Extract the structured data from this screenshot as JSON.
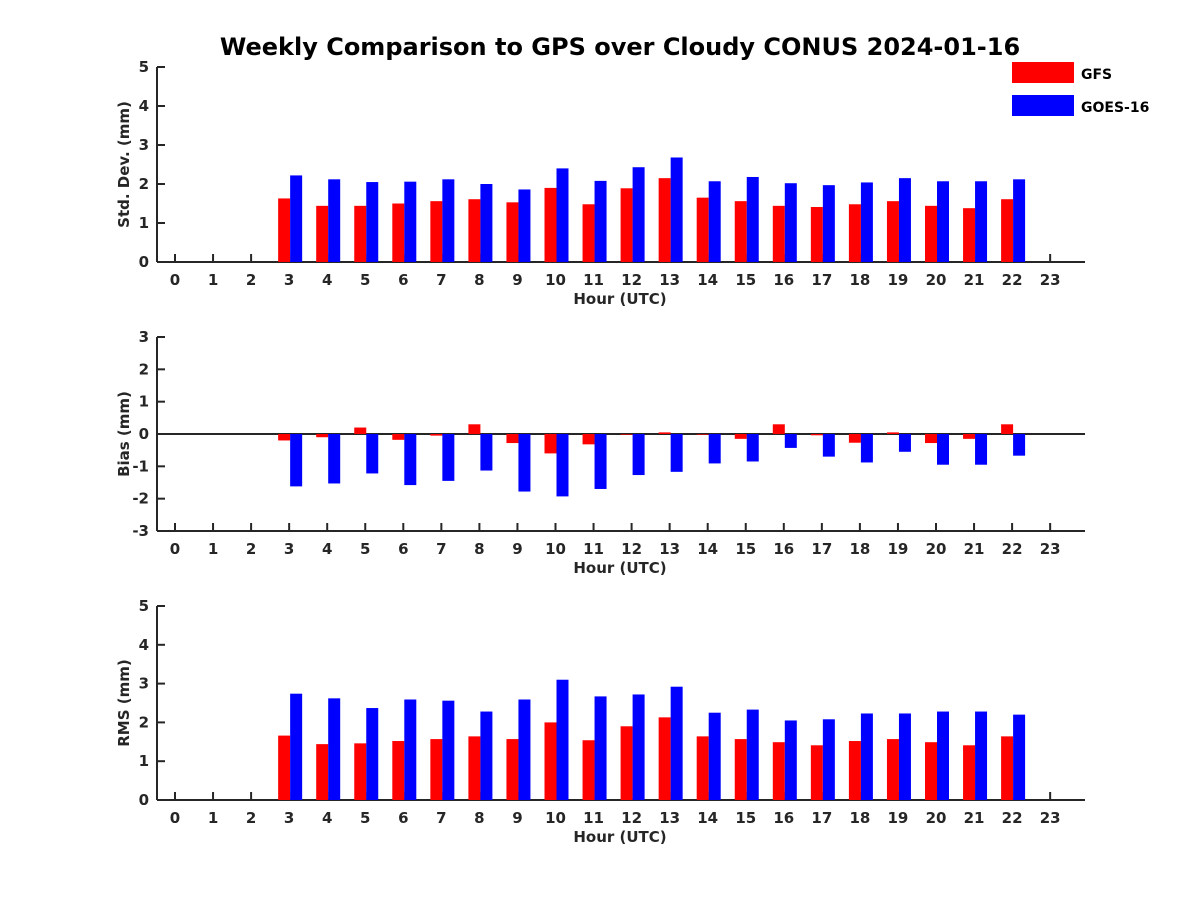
{
  "chart_data": {
    "title": "Weekly Comparison to GPS over Cloudy CONUS 2024-01-16",
    "legend": {
      "placement": "top-right",
      "entries": [
        {
          "name": "GFS",
          "color": "#ff0000"
        },
        {
          "name": "GOES-16",
          "color": "#0000ff"
        }
      ]
    },
    "panels": [
      {
        "type": "bar",
        "ylabel": "Std. Dev. (mm)",
        "xlabel": "Hour (UTC)",
        "ylim": [
          0,
          5
        ],
        "yticks": [
          "0",
          "1",
          "2",
          "3",
          "4",
          "5"
        ],
        "categories": [
          "0",
          "1",
          "2",
          "3",
          "4",
          "5",
          "6",
          "7",
          "8",
          "9",
          "10",
          "11",
          "12",
          "13",
          "14",
          "15",
          "16",
          "17",
          "18",
          "19",
          "20",
          "21",
          "22",
          "23"
        ],
        "series": [
          {
            "name": "GFS",
            "values": [
              null,
              null,
              null,
              1.63,
              1.44,
              1.44,
              1.5,
              1.56,
              1.61,
              1.53,
              1.9,
              1.48,
              1.89,
              2.15,
              1.65,
              1.56,
              1.44,
              1.41,
              1.48,
              1.56,
              1.44,
              1.38,
              1.61,
              null
            ]
          },
          {
            "name": "GOES-16",
            "values": [
              null,
              null,
              null,
              2.22,
              2.12,
              2.05,
              2.06,
              2.12,
              2.0,
              1.86,
              2.4,
              2.08,
              2.43,
              2.68,
              2.07,
              2.18,
              2.02,
              1.97,
              2.04,
              2.15,
              2.07,
              2.07,
              2.12,
              null
            ]
          }
        ]
      },
      {
        "type": "bar",
        "ylabel": "Bias (mm)",
        "xlabel": "Hour (UTC)",
        "ylim": [
          -3,
          3
        ],
        "yticks": [
          "-3",
          "-2",
          "-1",
          "0",
          "1",
          "2",
          "3"
        ],
        "zero_line": true,
        "categories": [
          "0",
          "1",
          "2",
          "3",
          "4",
          "5",
          "6",
          "7",
          "8",
          "9",
          "10",
          "11",
          "12",
          "13",
          "14",
          "15",
          "16",
          "17",
          "18",
          "19",
          "20",
          "21",
          "22",
          "23"
        ],
        "series": [
          {
            "name": "GFS",
            "values": [
              null,
              null,
              null,
              -0.2,
              -0.1,
              0.2,
              -0.18,
              -0.05,
              0.3,
              -0.28,
              -0.6,
              -0.32,
              -0.02,
              0.05,
              -0.02,
              -0.15,
              0.3,
              -0.04,
              -0.27,
              0.05,
              -0.28,
              -0.15,
              0.3,
              null
            ]
          },
          {
            "name": "GOES-16",
            "values": [
              null,
              null,
              null,
              -1.62,
              -1.53,
              -1.22,
              -1.58,
              -1.45,
              -1.13,
              -1.78,
              -1.93,
              -1.7,
              -1.27,
              -1.17,
              -0.91,
              -0.85,
              -0.43,
              -0.7,
              -0.88,
              -0.55,
              -0.95,
              -0.95,
              -0.67,
              null
            ]
          }
        ]
      },
      {
        "type": "bar",
        "ylabel": "RMS (mm)",
        "xlabel": "Hour (UTC)",
        "ylim": [
          0,
          5
        ],
        "yticks": [
          "0",
          "1",
          "2",
          "3",
          "4",
          "5"
        ],
        "categories": [
          "0",
          "1",
          "2",
          "3",
          "4",
          "5",
          "6",
          "7",
          "8",
          "9",
          "10",
          "11",
          "12",
          "13",
          "14",
          "15",
          "16",
          "17",
          "18",
          "19",
          "20",
          "21",
          "22",
          "23"
        ],
        "series": [
          {
            "name": "GFS",
            "values": [
              null,
              null,
              null,
              1.66,
              1.44,
              1.46,
              1.52,
              1.57,
              1.64,
              1.57,
              2.0,
              1.54,
              1.9,
              2.13,
              1.64,
              1.57,
              1.49,
              1.41,
              1.52,
              1.57,
              1.49,
              1.41,
              1.64,
              null
            ]
          },
          {
            "name": "GOES-16",
            "values": [
              null,
              null,
              null,
              2.74,
              2.62,
              2.37,
              2.59,
              2.56,
              2.28,
              2.59,
              3.1,
              2.67,
              2.72,
              2.92,
              2.25,
              2.33,
              2.05,
              2.08,
              2.23,
              2.23,
              2.28,
              2.28,
              2.2,
              null
            ]
          }
        ]
      }
    ]
  }
}
